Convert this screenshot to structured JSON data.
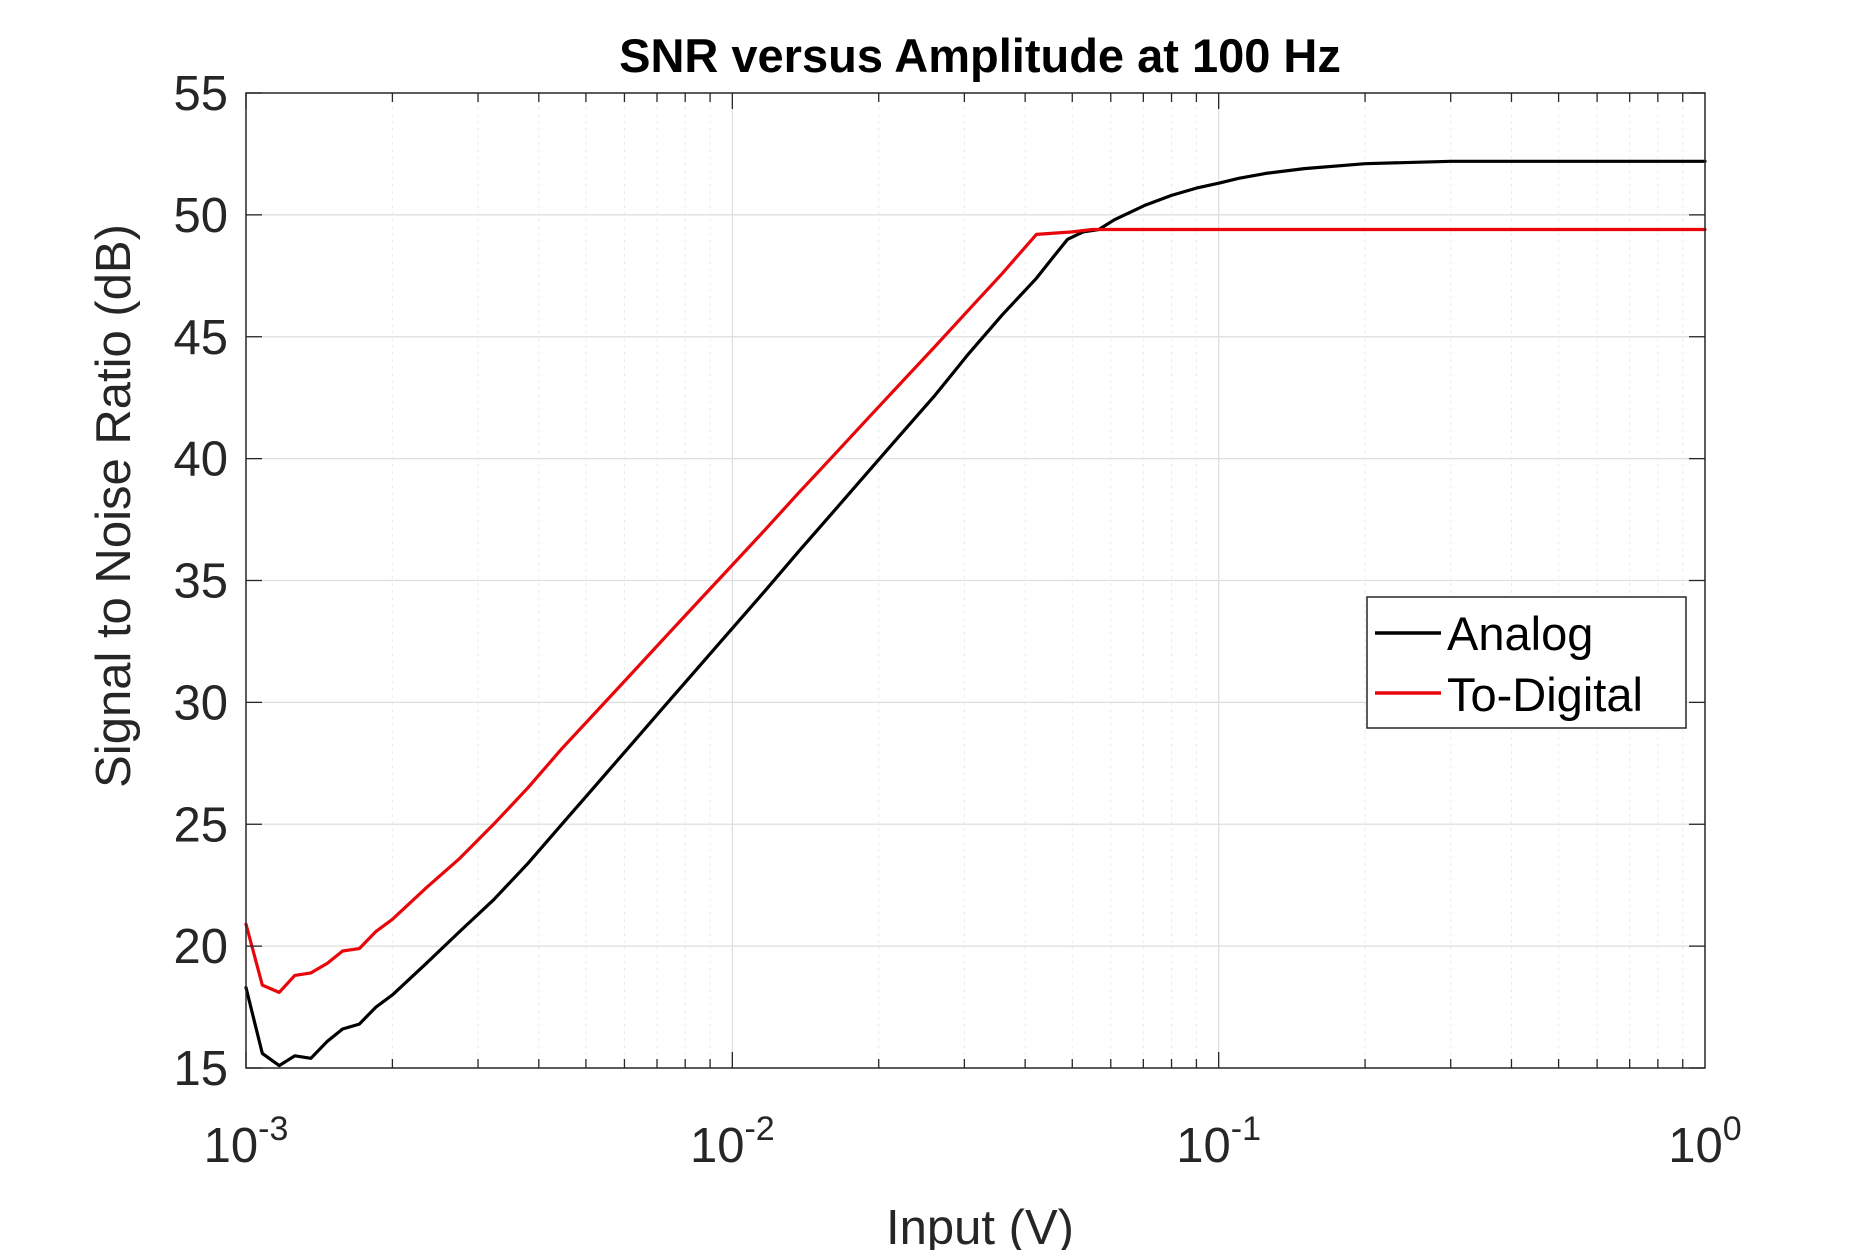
{
  "chart_data": {
    "type": "line",
    "title": "SNR versus Amplitude at 100 Hz",
    "xlabel": "Input (V)",
    "ylabel": "Signal to Noise Ratio (dB)",
    "x_scale": "log",
    "xlim": [
      0.001,
      1
    ],
    "ylim": [
      15,
      55
    ],
    "x_ticks": [
      {
        "base": "10",
        "exp": "-3",
        "value": 0.001
      },
      {
        "base": "10",
        "exp": "-2",
        "value": 0.01
      },
      {
        "base": "10",
        "exp": "-1",
        "value": 0.1
      },
      {
        "base": "10",
        "exp": "0",
        "value": 1
      }
    ],
    "y_ticks": [
      "15",
      "20",
      "25",
      "30",
      "35",
      "40",
      "45",
      "50",
      "55"
    ],
    "grid": true,
    "legend_position": "right",
    "series": [
      {
        "name": "Analog",
        "color": "#000000",
        "x": [
          0.001,
          0.00108,
          0.00117,
          0.00126,
          0.00136,
          0.00147,
          0.00158,
          0.00171,
          0.00185,
          0.002,
          0.00235,
          0.00275,
          0.00323,
          0.0038,
          0.00446,
          0.00524,
          0.00615,
          0.00722,
          0.00848,
          0.00996,
          0.0117,
          0.0137,
          0.0161,
          0.0189,
          0.0222,
          0.0261,
          0.0306,
          0.0359,
          0.0422,
          0.0454,
          0.0489,
          0.0526,
          0.0567,
          0.061,
          0.0657,
          0.0707,
          0.08,
          0.09,
          0.1,
          0.11,
          0.125,
          0.15,
          0.2,
          0.3,
          0.5,
          1.0
        ],
        "y": [
          18.3,
          15.6,
          15.1,
          15.5,
          15.4,
          16.1,
          16.6,
          16.8,
          17.5,
          18.0,
          19.3,
          20.6,
          21.9,
          23.4,
          25.0,
          26.6,
          28.2,
          29.8,
          31.4,
          33.0,
          34.6,
          36.2,
          37.8,
          39.4,
          41.0,
          42.6,
          44.3,
          45.9,
          47.4,
          48.2,
          49.0,
          49.3,
          49.4,
          49.8,
          50.1,
          50.4,
          50.8,
          51.1,
          51.3,
          51.5,
          51.7,
          51.9,
          52.1,
          52.2,
          52.2,
          52.2
        ]
      },
      {
        "name": "To-Digital",
        "color": "#e8060b",
        "x": [
          0.001,
          0.00108,
          0.00117,
          0.00126,
          0.00136,
          0.00147,
          0.00158,
          0.00171,
          0.00185,
          0.002,
          0.00235,
          0.00275,
          0.00323,
          0.0038,
          0.00446,
          0.00524,
          0.00615,
          0.00722,
          0.00848,
          0.00996,
          0.0117,
          0.0137,
          0.0161,
          0.0189,
          0.0222,
          0.0261,
          0.0306,
          0.0359,
          0.0422,
          0.05,
          0.055,
          0.065,
          0.08,
          0.1,
          0.15,
          0.2,
          0.3,
          0.5,
          1.0
        ],
        "y": [
          20.9,
          18.4,
          18.1,
          18.8,
          18.9,
          19.3,
          19.8,
          19.9,
          20.6,
          21.1,
          22.4,
          23.6,
          25.0,
          26.5,
          28.1,
          29.6,
          31.1,
          32.6,
          34.1,
          35.6,
          37.1,
          38.6,
          40.1,
          41.6,
          43.1,
          44.6,
          46.1,
          47.6,
          49.2,
          49.3,
          49.4,
          49.4,
          49.4,
          49.4,
          49.4,
          49.4,
          49.4,
          49.4,
          49.4
        ]
      }
    ]
  }
}
